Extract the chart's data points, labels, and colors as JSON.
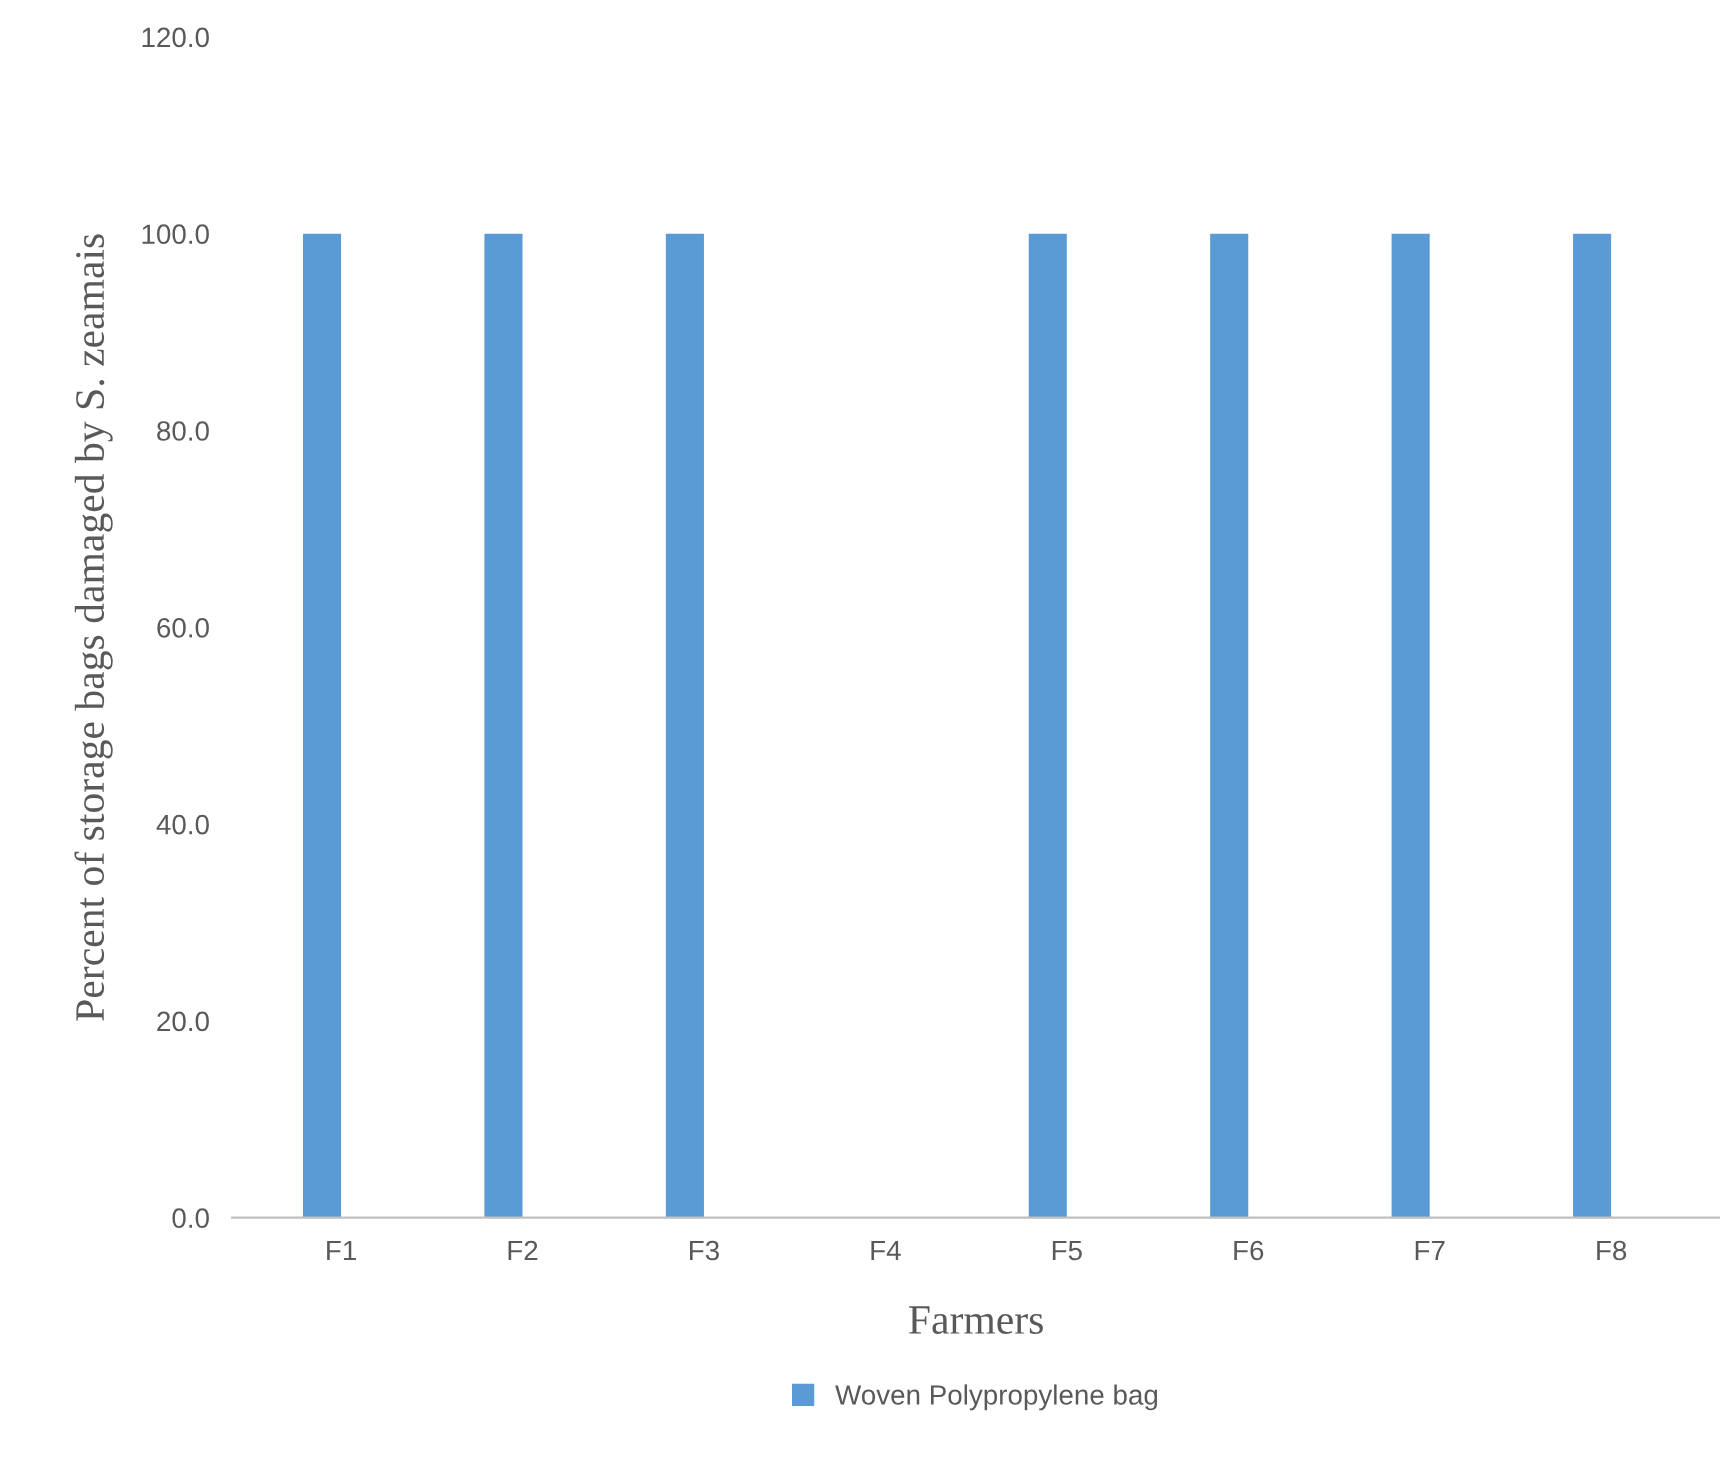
{
  "chart_data": {
    "type": "bar",
    "xlabel": "Farmers",
    "ylabel": "Percent of storage bags damaged by S. zeamais",
    "categories": [
      "F1",
      "F2",
      "F3",
      "F4",
      "F5",
      "F6",
      "F7",
      "F8"
    ],
    "series": [
      {
        "name": "Woven Polypropylene bag",
        "color": "#5b9bd5",
        "values": [
          100,
          100,
          100,
          0,
          100,
          100,
          100,
          100
        ]
      },
      {
        "color": "#ed7d31",
        "values": [
          0,
          0,
          0,
          0,
          0,
          0,
          0,
          0
        ]
      }
    ],
    "ylim": [
      0,
      120
    ],
    "yticks": [
      {
        "value": 0,
        "label": "0.0"
      },
      {
        "value": 20,
        "label": "20.0"
      },
      {
        "value": 40,
        "label": "40.0"
      },
      {
        "value": 60,
        "label": "60.0"
      },
      {
        "value": 80,
        "label": "80.0"
      },
      {
        "value": 100,
        "label": "100.0"
      },
      {
        "value": 120,
        "label": "120.0"
      }
    ],
    "grid": false,
    "legend": "bottom"
  }
}
